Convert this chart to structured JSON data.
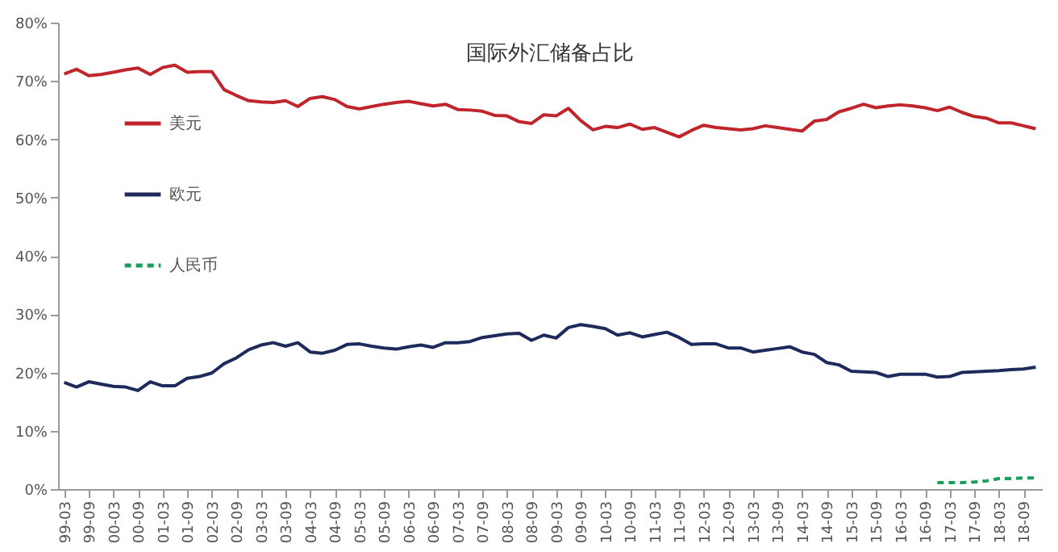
{
  "chart_data": {
    "type": "line",
    "title": "国际外汇储备占比",
    "categories": [
      "99-03",
      null,
      "99-09",
      null,
      "00-03",
      null,
      "00-09",
      null,
      "01-03",
      null,
      "01-09",
      null,
      "02-03",
      null,
      "02-09",
      null,
      "03-03",
      null,
      "03-09",
      null,
      "04-03",
      null,
      "04-09",
      null,
      "05-03",
      null,
      "05-09",
      null,
      "06-03",
      null,
      "06-09",
      null,
      "07-03",
      null,
      "07-09",
      null,
      "08-03",
      null,
      "08-09",
      null,
      "09-03",
      null,
      "09-09",
      null,
      "10-03",
      null,
      "10-09",
      null,
      "11-03",
      null,
      "11-09",
      null,
      "12-03",
      null,
      "12-09",
      null,
      "13-03",
      null,
      "13-09",
      null,
      "14-03",
      null,
      "14-09",
      null,
      "15-03",
      null,
      "15-09",
      null,
      "16-03",
      null,
      "16-09",
      null,
      "17-03",
      null,
      "17-09",
      null,
      "18-03",
      null,
      "18-09",
      null
    ],
    "series": [
      {
        "name": "美元",
        "color": "#c0252b",
        "line_style": "solid",
        "values": [
          71.2,
          72.0,
          70.9,
          71.1,
          71.5,
          71.9,
          72.2,
          71.1,
          72.3,
          72.7,
          71.5,
          71.6,
          71.6,
          68.5,
          67.5,
          66.6,
          66.4,
          66.3,
          66.6,
          65.6,
          67.0,
          67.3,
          66.8,
          65.6,
          65.2,
          65.6,
          66.0,
          66.3,
          66.5,
          66.1,
          65.7,
          66.0,
          65.1,
          65.0,
          64.8,
          64.1,
          64.0,
          63.0,
          62.7,
          64.2,
          64.0,
          65.3,
          63.2,
          61.6,
          62.2,
          62.0,
          62.6,
          61.7,
          62.0,
          61.2,
          60.4,
          61.5,
          62.4,
          62.0,
          61.8,
          61.6,
          61.8,
          62.3,
          62.0,
          61.7,
          61.4,
          63.1,
          63.4,
          64.7,
          65.3,
          66.0,
          65.4,
          65.7,
          65.9,
          65.7,
          65.4,
          64.9,
          65.5,
          64.6,
          63.9,
          63.6,
          62.8,
          62.8,
          62.3,
          61.8
        ]
      },
      {
        "name": "欧元",
        "color": "#1f2a5c",
        "line_style": "solid",
        "values": [
          18.3,
          17.5,
          18.4,
          18.0,
          17.6,
          17.5,
          16.9,
          18.4,
          17.7,
          17.7,
          19.0,
          19.3,
          19.9,
          21.5,
          22.5,
          23.9,
          24.7,
          25.1,
          24.5,
          25.1,
          23.5,
          23.3,
          23.8,
          24.8,
          24.9,
          24.5,
          24.2,
          24.0,
          24.4,
          24.7,
          24.3,
          25.1,
          25.1,
          25.3,
          26.0,
          26.3,
          26.6,
          26.7,
          25.5,
          26.4,
          25.9,
          27.7,
          28.2,
          27.9,
          27.5,
          26.4,
          26.8,
          26.1,
          26.5,
          26.9,
          26.0,
          24.8,
          24.9,
          24.9,
          24.2,
          24.2,
          23.5,
          23.8,
          24.1,
          24.4,
          23.5,
          23.1,
          21.7,
          21.3,
          20.2,
          20.1,
          20.0,
          19.3,
          19.7,
          19.7,
          19.7,
          19.2,
          19.3,
          20.0,
          20.1,
          20.2,
          20.3,
          20.5,
          20.6,
          20.9
        ]
      },
      {
        "name": "人民币",
        "color": "#1a9e5c",
        "line_style": "dashed",
        "values": [
          null,
          null,
          null,
          null,
          null,
          null,
          null,
          null,
          null,
          null,
          null,
          null,
          null,
          null,
          null,
          null,
          null,
          null,
          null,
          null,
          null,
          null,
          null,
          null,
          null,
          null,
          null,
          null,
          null,
          null,
          null,
          null,
          null,
          null,
          null,
          null,
          null,
          null,
          null,
          null,
          null,
          null,
          null,
          null,
          null,
          null,
          null,
          null,
          null,
          null,
          null,
          null,
          null,
          null,
          null,
          null,
          null,
          null,
          null,
          null,
          null,
          null,
          null,
          null,
          null,
          null,
          null,
          null,
          null,
          null,
          null,
          1.1,
          1.1,
          1.1,
          1.2,
          1.4,
          1.8,
          1.8,
          1.9,
          1.9
        ]
      }
    ],
    "ylim": [
      0,
      80
    ],
    "yticks": [
      {
        "value": 0,
        "label": "0%"
      },
      {
        "value": 10,
        "label": "10%"
      },
      {
        "value": 20,
        "label": "20%"
      },
      {
        "value": 30,
        "label": "30%"
      },
      {
        "value": 40,
        "label": "40%"
      },
      {
        "value": 50,
        "label": "50%"
      },
      {
        "value": 60,
        "label": "60%"
      },
      {
        "value": 70,
        "label": "70%"
      },
      {
        "value": 80,
        "label": "80%"
      }
    ],
    "grid": false,
    "legend": "top left"
  }
}
